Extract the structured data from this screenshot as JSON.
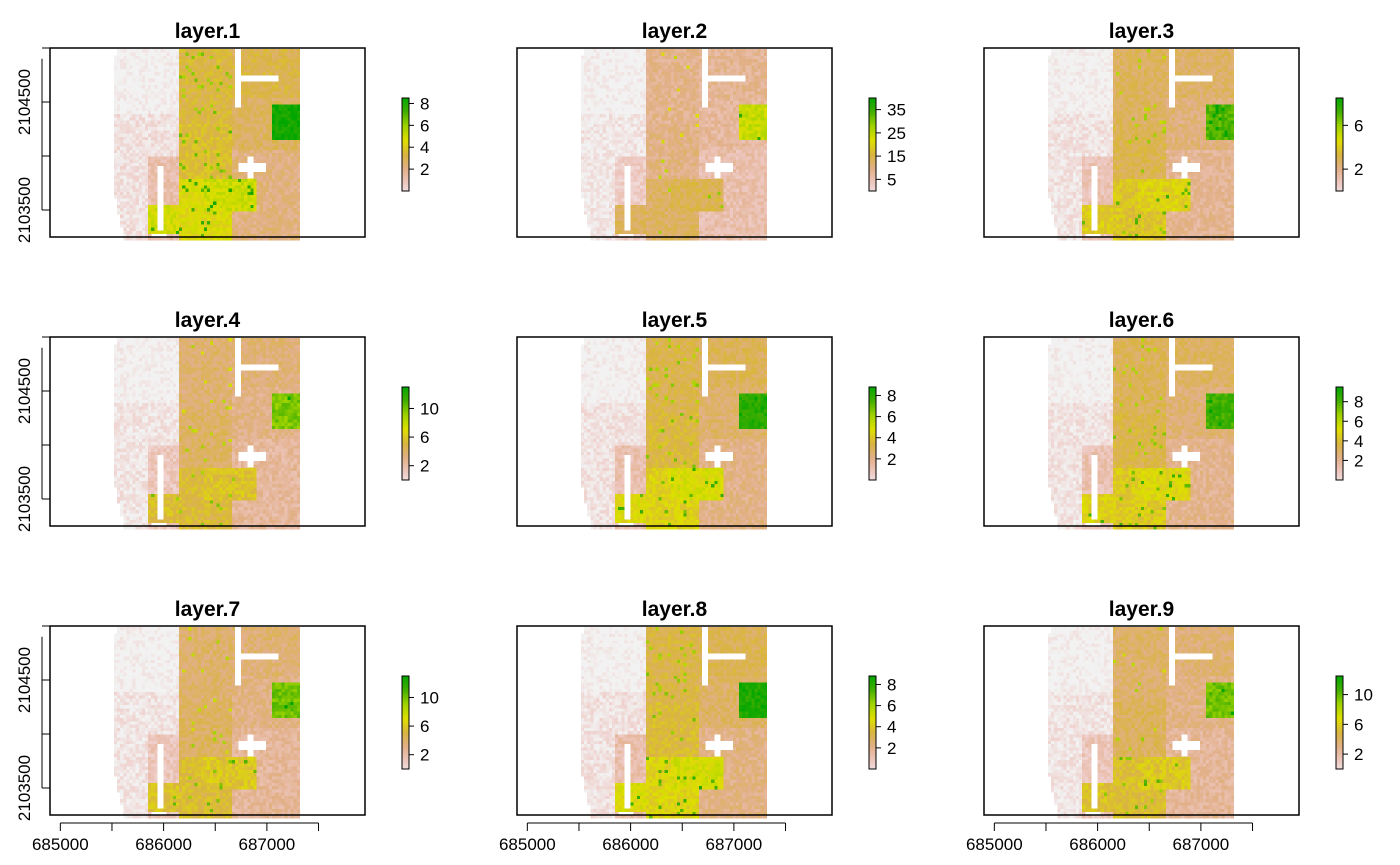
{
  "chart_data": {
    "type": "heatmap",
    "layout": {
      "rows": 3,
      "cols": 3
    },
    "x_ticks": [
      "685000",
      "686000",
      "687000"
    ],
    "y_ticks": [
      "2103500",
      "2104500"
    ],
    "xlim": [
      684900,
      687950
    ],
    "ylim": [
      2103250,
      2105000
    ],
    "panels": [
      {
        "title": "layer.1",
        "legend_ticks": [
          "2",
          "4",
          "6",
          "8"
        ],
        "max": 8.5,
        "hot": 0.78
      },
      {
        "title": "layer.2",
        "legend_ticks": [
          "5",
          "15",
          "25",
          "35"
        ],
        "max": 40,
        "hot": 0.18
      },
      {
        "title": "layer.3",
        "legend_ticks": [
          "2",
          "6"
        ],
        "max": 8.5,
        "hot": 0.55
      },
      {
        "title": "layer.4",
        "legend_ticks": [
          "2",
          "6",
          "10"
        ],
        "max": 13,
        "hot": 0.42
      },
      {
        "title": "layer.5",
        "legend_ticks": [
          "2",
          "4",
          "6",
          "8"
        ],
        "max": 8.8,
        "hot": 0.68
      },
      {
        "title": "layer.6",
        "legend_ticks": [
          "2",
          "4",
          "6",
          "8"
        ],
        "max": 9.5,
        "hot": 0.6
      },
      {
        "title": "layer.7",
        "legend_ticks": [
          "2",
          "6",
          "10"
        ],
        "max": 13,
        "hot": 0.45
      },
      {
        "title": "layer.8",
        "legend_ticks": [
          "2",
          "4",
          "6",
          "8"
        ],
        "max": 8.8,
        "hot": 0.72
      },
      {
        "title": "layer.9",
        "legend_ticks": [
          "2",
          "6",
          "10"
        ],
        "max": 12.5,
        "hot": 0.46
      }
    ],
    "colors": {
      "palette": [
        "#f2f2f2",
        "#eec9c4",
        "#e2b08a",
        "#d9b441",
        "#dfdf00",
        "#9fd300",
        "#41ae00",
        "#00a600"
      ],
      "na": "#ffffff",
      "frame": "#000000"
    }
  }
}
